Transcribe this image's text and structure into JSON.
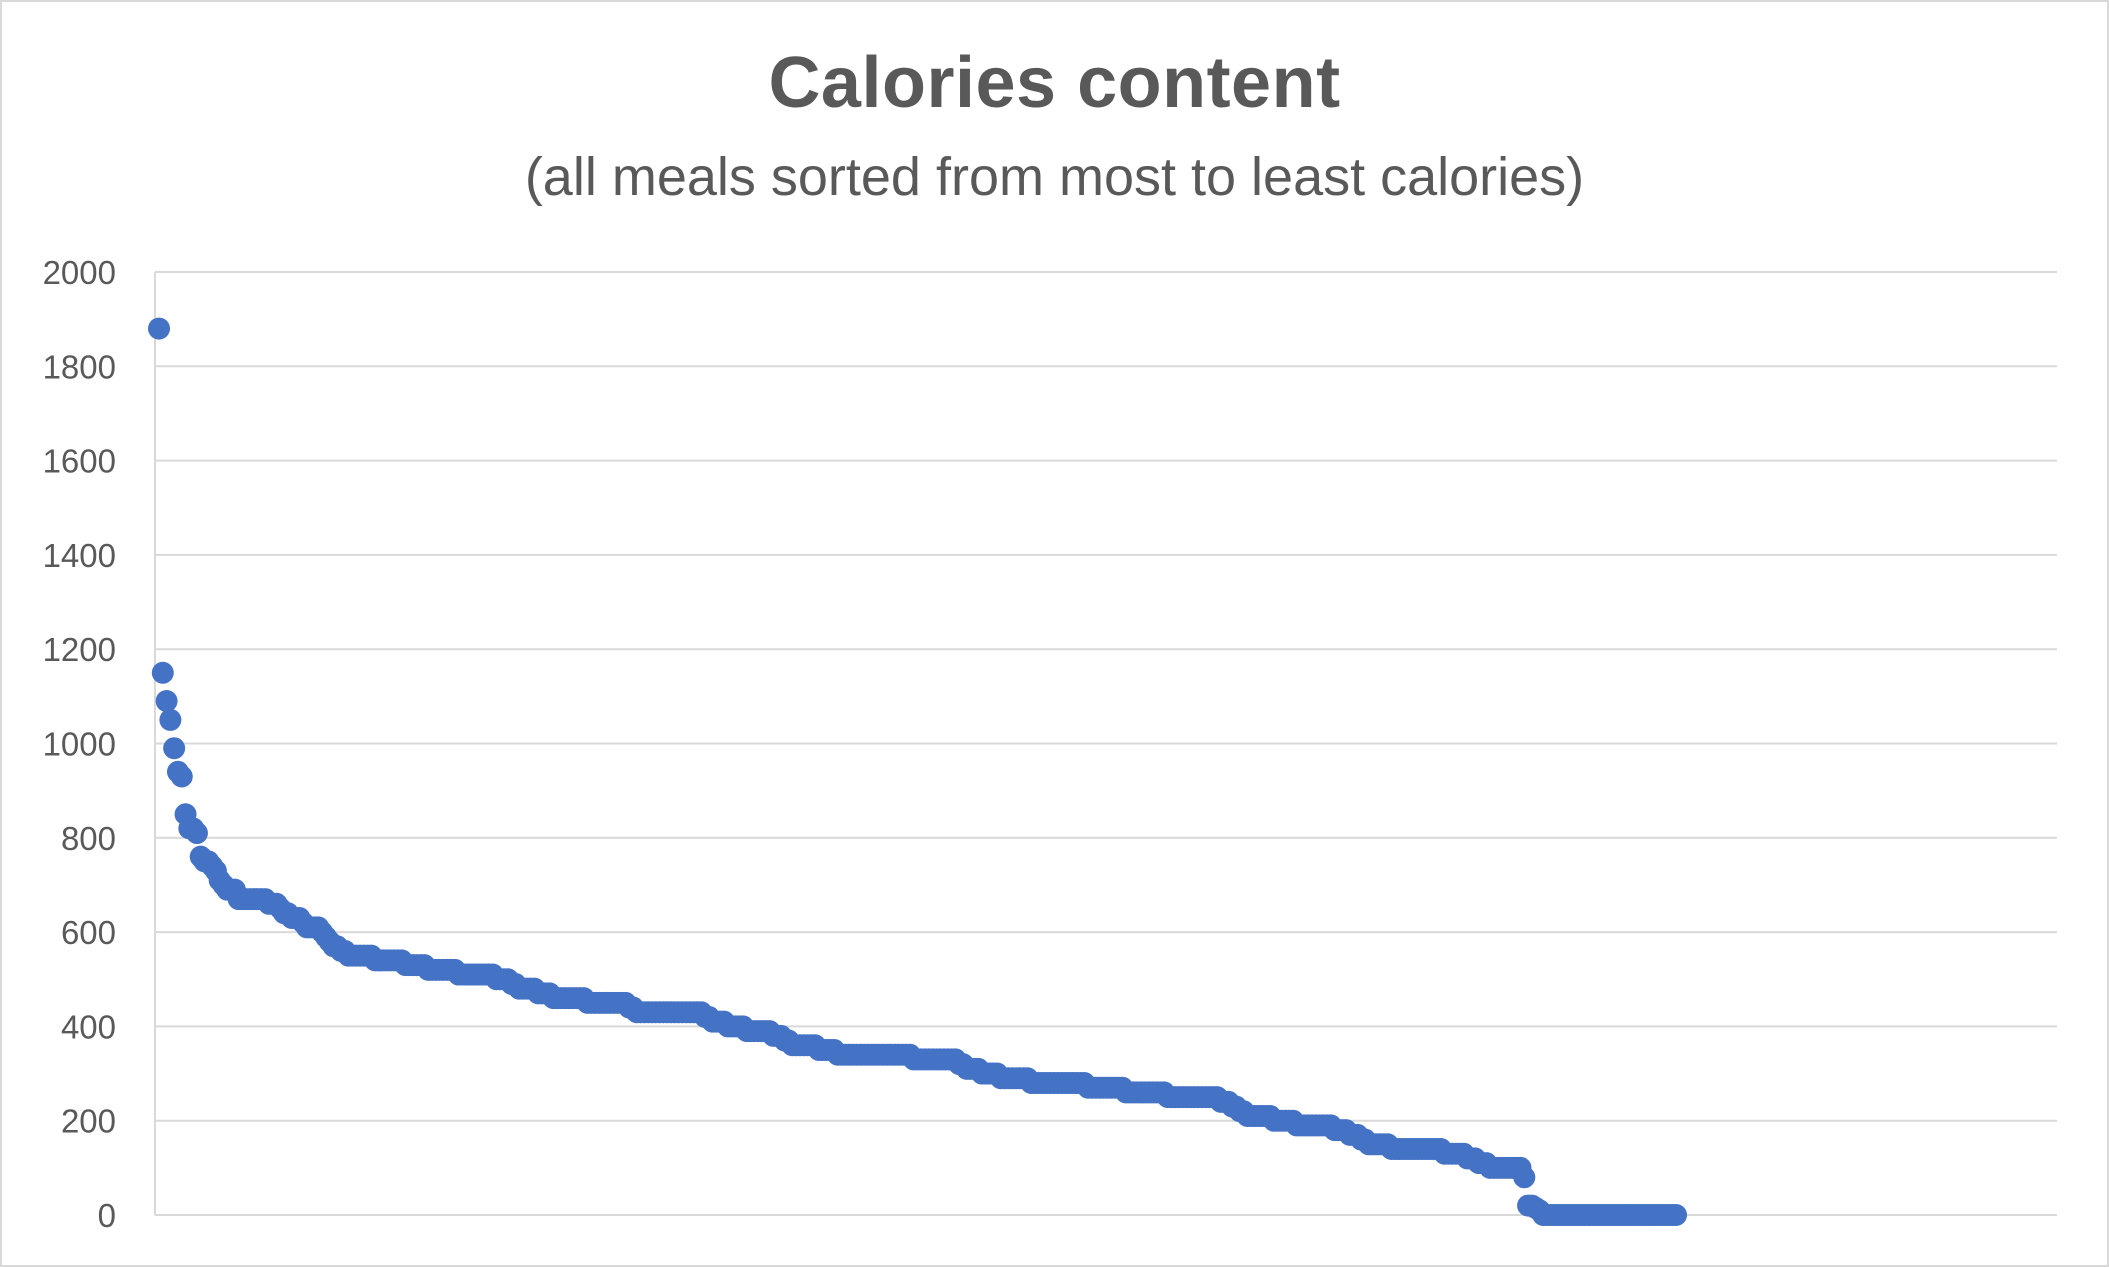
{
  "chart_data": {
    "type": "scatter",
    "title": "Calories content",
    "subtitle": "(all meals sorted from most to least calories)",
    "xlabel": "",
    "ylabel": "",
    "ylim": [
      0,
      2000
    ],
    "y_ticks": [
      "0",
      "200",
      "400",
      "600",
      "800",
      "1000",
      "1200",
      "1400",
      "1600",
      "1800",
      "2000"
    ],
    "grid": true,
    "legend": "none",
    "marker_color": "#4472C4",
    "series": [
      {
        "values": [
          1880,
          1150,
          1090,
          1050,
          990,
          940,
          930,
          850,
          820,
          820,
          810,
          760,
          750,
          750,
          740,
          730,
          710,
          700,
          690,
          690,
          690,
          670,
          670,
          670,
          670,
          670,
          670,
          670,
          670,
          660,
          660,
          660,
          650,
          640,
          640,
          630,
          630,
          630,
          620,
          610,
          610,
          610,
          610,
          600,
          590,
          580,
          570,
          570,
          560,
          560,
          550,
          550,
          550,
          550,
          550,
          550,
          550,
          540,
          540,
          540,
          540,
          540,
          540,
          540,
          540,
          530,
          530,
          530,
          530,
          530,
          530,
          520,
          520,
          520,
          520,
          520,
          520,
          520,
          520,
          510,
          510,
          510,
          510,
          510,
          510,
          510,
          510,
          510,
          510,
          500,
          500,
          500,
          500,
          490,
          490,
          480,
          480,
          480,
          480,
          480,
          470,
          470,
          470,
          470,
          460,
          460,
          460,
          460,
          460,
          460,
          460,
          460,
          460,
          450,
          450,
          450,
          450,
          450,
          450,
          450,
          450,
          450,
          450,
          450,
          440,
          440,
          430,
          430,
          430,
          430,
          430,
          430,
          430,
          430,
          430,
          430,
          430,
          430,
          430,
          430,
          430,
          430,
          430,
          430,
          420,
          420,
          410,
          410,
          410,
          410,
          400,
          400,
          400,
          400,
          400,
          390,
          390,
          390,
          390,
          390,
          390,
          390,
          380,
          380,
          380,
          370,
          370,
          360,
          360,
          360,
          360,
          360,
          360,
          360,
          350,
          350,
          350,
          350,
          350,
          340,
          340,
          340,
          340,
          340,
          340,
          340,
          340,
          340,
          340,
          340,
          340,
          340,
          340,
          340,
          340,
          340,
          340,
          340,
          340,
          330,
          330,
          330,
          330,
          330,
          330,
          330,
          330,
          330,
          330,
          330,
          330,
          320,
          320,
          310,
          310,
          310,
          310,
          300,
          300,
          300,
          300,
          300,
          290,
          290,
          290,
          290,
          290,
          290,
          290,
          290,
          280,
          280,
          280,
          280,
          280,
          280,
          280,
          280,
          280,
          280,
          280,
          280,
          280,
          280,
          280,
          270,
          270,
          270,
          270,
          270,
          270,
          270,
          270,
          270,
          270,
          260,
          260,
          260,
          260,
          260,
          260,
          260,
          260,
          260,
          260,
          260,
          250,
          250,
          250,
          250,
          250,
          250,
          250,
          250,
          250,
          250,
          250,
          250,
          250,
          250,
          240,
          240,
          240,
          230,
          230,
          220,
          220,
          210,
          210,
          210,
          210,
          210,
          210,
          210,
          200,
          200,
          200,
          200,
          200,
          200,
          190,
          190,
          190,
          190,
          190,
          190,
          190,
          190,
          190,
          190,
          180,
          180,
          180,
          180,
          170,
          170,
          170,
          160,
          160,
          150,
          150,
          150,
          150,
          150,
          150,
          140,
          140,
          140,
          140,
          140,
          140,
          140,
          140,
          140,
          140,
          140,
          140,
          140,
          140,
          130,
          130,
          130,
          130,
          130,
          130,
          120,
          120,
          120,
          110,
          110,
          110,
          100,
          100,
          100,
          100,
          100,
          100,
          100,
          100,
          100,
          80,
          20,
          20,
          15,
          10,
          0,
          0,
          0,
          0,
          0,
          0,
          0,
          0,
          0,
          0,
          0,
          0,
          0,
          0,
          0,
          0,
          0,
          0,
          0,
          0,
          0,
          0,
          0,
          0,
          0,
          0,
          0,
          0,
          0,
          0,
          0,
          0,
          0,
          0,
          0,
          0
        ]
      }
    ]
  }
}
